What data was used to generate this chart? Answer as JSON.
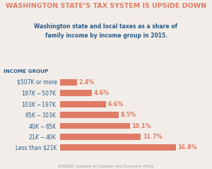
{
  "title_top": "WASHINGTON STATE’S TAX SYSTEM IS UPSIDE DOWN",
  "subtitle_line1": "Washington state and local taxes as a share of",
  "subtitle_line2": "family income by income group in 2015.",
  "income_group_label": "INCOME GROUP",
  "categories": [
    "Less than $21K",
    "$21K - $40K",
    "$40K - $65K",
    "$65K - $103K",
    "$103K - $197K",
    "$197K - $507K",
    "$507K or more"
  ],
  "values": [
    16.8,
    11.7,
    10.1,
    8.5,
    6.6,
    4.6,
    2.4
  ],
  "labels": [
    "16.8%",
    "11.7%",
    "10.1%",
    "8.5%",
    "6.6%",
    "4.6%",
    "2.4%"
  ],
  "bar_color": "#e07b65",
  "title_color": "#e07b65",
  "subtitle_color": "#2b5c8a",
  "category_color": "#2b5c8a",
  "label_color": "#e07b65",
  "source_text": "SOURCE: Institute on Taxation And Economic Policy",
  "source_color": "#999999",
  "bg_color": "#f2ede8",
  "income_group_color": "#2b5c8a"
}
